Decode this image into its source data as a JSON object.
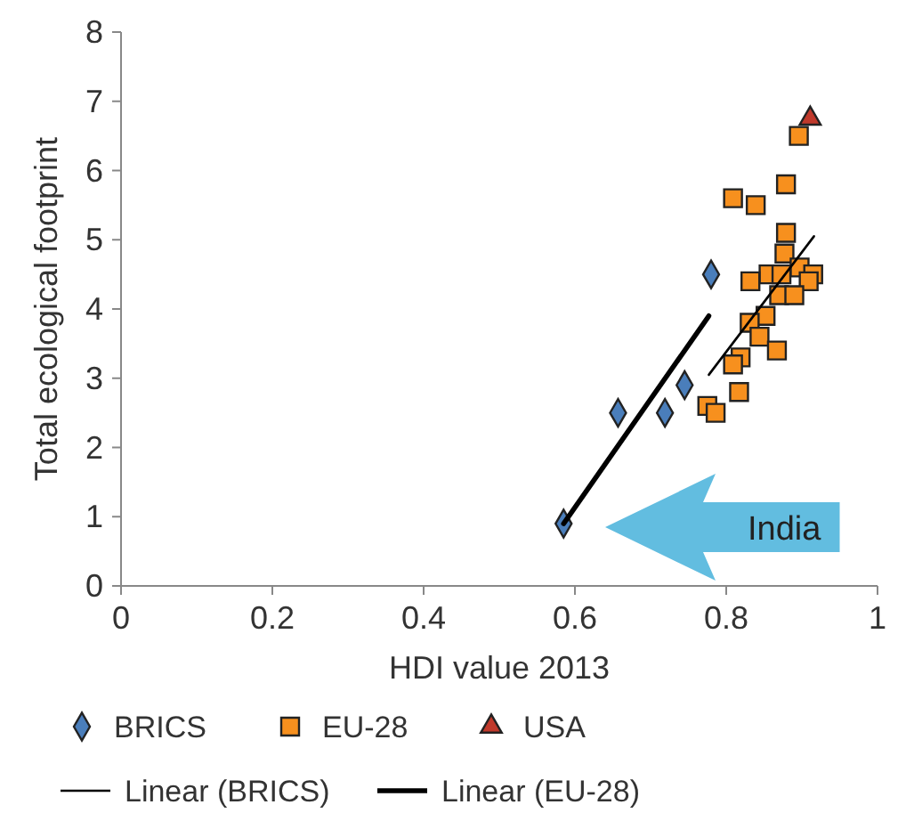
{
  "chart_data": {
    "type": "scatter",
    "xlabel": "HDI value 2013",
    "ylabel": "Total ecological footprint",
    "xlim": [
      0,
      1
    ],
    "ylim": [
      0,
      8
    ],
    "xticks": [
      0,
      0.2,
      0.4,
      0.6,
      0.8,
      1
    ],
    "yticks": [
      0,
      1,
      2,
      3,
      4,
      5,
      6,
      7,
      8
    ],
    "grid": false,
    "legend": "bottom",
    "annotations": [
      "India"
    ],
    "series": [
      {
        "name": "BRICS",
        "marker": "diamond",
        "color": "#4a7ebb",
        "x": [
          0.585,
          0.657,
          0.719,
          0.745,
          0.78
        ],
        "values": [
          0.9,
          2.5,
          2.5,
          2.9,
          4.5
        ]
      },
      {
        "name": "EU-28",
        "marker": "square",
        "color": "#f7901e",
        "x": [
          0.896,
          0.879,
          0.809,
          0.839,
          0.879,
          0.877,
          0.897,
          0.915,
          0.856,
          0.873,
          0.909,
          0.832,
          0.87,
          0.89,
          0.852,
          0.831,
          0.844,
          0.867,
          0.819,
          0.809,
          0.817,
          0.775,
          0.786
        ],
        "values": [
          6.5,
          5.8,
          5.6,
          5.5,
          5.1,
          4.8,
          4.6,
          4.5,
          4.5,
          4.5,
          4.4,
          4.4,
          4.2,
          4.2,
          3.9,
          3.8,
          3.6,
          3.4,
          3.3,
          3.2,
          2.8,
          2.6,
          2.5
        ]
      },
      {
        "name": "USA",
        "marker": "triangle",
        "color": "#c0392b",
        "x": [
          0.911
        ],
        "values": [
          6.75
        ]
      },
      {
        "name": "Linear (BRICS)",
        "type": "line",
        "line_style": "solid",
        "color": "#000000",
        "x": [
          0.777,
          0.916
        ],
        "values": [
          3.05,
          5.05
        ]
      },
      {
        "name": "Linear (EU-28)",
        "type": "line",
        "line_style": "solid",
        "color": "#000000",
        "x": [
          0.585,
          0.777
        ],
        "values": [
          0.9,
          3.9
        ]
      }
    ]
  }
}
